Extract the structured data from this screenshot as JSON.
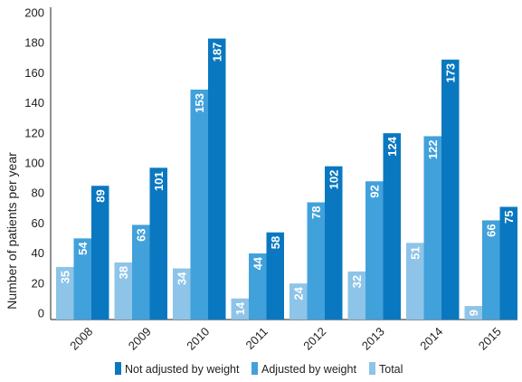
{
  "chart_data": {
    "type": "bar",
    "categories": [
      "2008",
      "2009",
      "2010",
      "2011",
      "2012",
      "2013",
      "2014",
      "2015"
    ],
    "series": [
      {
        "name": "Total",
        "color": "#8dc4e8",
        "values": [
          35,
          38,
          34,
          14,
          24,
          32,
          51,
          9
        ]
      },
      {
        "name": "Adjusted by weight",
        "color": "#41a1db",
        "values": [
          54,
          63,
          153,
          44,
          78,
          92,
          122,
          66
        ]
      },
      {
        "name": "Not adjusted by weight",
        "color": "#0a78c0",
        "values": [
          89,
          101,
          187,
          58,
          102,
          124,
          173,
          75
        ]
      }
    ],
    "legend_order": [
      "Not adjusted by weight",
      "Adjusted by weight",
      "Total"
    ],
    "legend_position": "bottom",
    "title": "",
    "xlabel": "",
    "ylabel": "Number of patients per year",
    "ylim": [
      0,
      200
    ],
    "yticks": [
      0,
      20,
      40,
      60,
      80,
      100,
      120,
      140,
      160,
      180,
      200
    ],
    "grid": false
  }
}
